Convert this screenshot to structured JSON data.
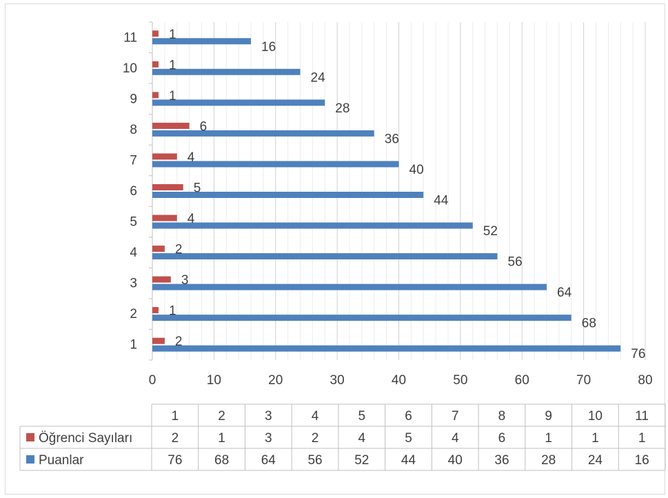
{
  "chart_data": {
    "type": "bar",
    "orientation": "horizontal",
    "categories": [
      "1",
      "2",
      "3",
      "4",
      "5",
      "6",
      "7",
      "8",
      "9",
      "10",
      "11"
    ],
    "series": [
      {
        "name": "Öğrenci Sayıları",
        "color": "#c0504d",
        "values": [
          2,
          1,
          3,
          2,
          4,
          5,
          4,
          6,
          1,
          1,
          1
        ]
      },
      {
        "name": "Puanlar",
        "color": "#4f81bd",
        "values": [
          76,
          68,
          64,
          56,
          52,
          44,
          40,
          36,
          28,
          24,
          16
        ]
      }
    ],
    "xlim": [
      0,
      80
    ],
    "x_ticks": [
      "0",
      "10",
      "20",
      "30",
      "40",
      "50",
      "60",
      "70",
      "80"
    ],
    "gridlines": "vertical major and minor",
    "data_labels": true,
    "data_table": true,
    "legend": "in data table"
  }
}
